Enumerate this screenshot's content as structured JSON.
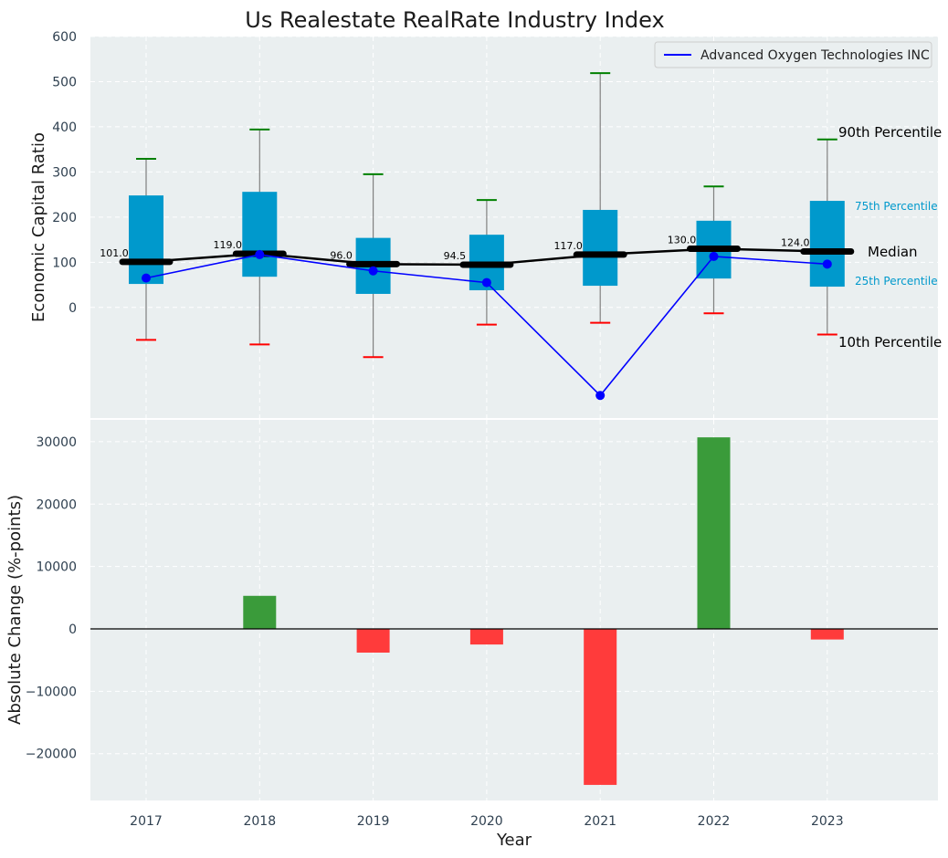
{
  "chart_data": [
    {
      "type": "box",
      "title": "Us Realestate RealRate Industry Index",
      "ylabel": "Economic Capital Ratio",
      "ylim": [
        -245,
        600
      ],
      "yticks": [
        0,
        100,
        200,
        300,
        400,
        500,
        600
      ],
      "categories": [
        "2017",
        "2018",
        "2019",
        "2020",
        "2021",
        "2022",
        "2023"
      ],
      "p10": [
        -72,
        -82,
        -110,
        -38,
        -34,
        -13,
        -60
      ],
      "p25": [
        52,
        68,
        30,
        38,
        48,
        64,
        46
      ],
      "median": [
        101,
        119,
        96,
        94.5,
        117,
        130,
        124
      ],
      "p75": [
        248,
        256,
        154,
        161,
        216,
        192,
        236
      ],
      "p90": [
        329,
        394,
        295,
        238,
        519,
        268,
        372
      ],
      "median_labels": [
        "101.0",
        "119.0",
        "96.0",
        "94.5",
        "117.0",
        "130.0",
        "124.0"
      ],
      "series": [
        {
          "name": "Advanced Oxygen Technologies INC",
          "color": "#0000ff",
          "values": [
            65,
            117,
            81,
            55,
            -195,
            113,
            96
          ]
        }
      ],
      "annotations": {
        "p90": "90th Percentile",
        "p75": "75th Percentile",
        "median": "Median",
        "p25": "25th Percentile",
        "p10": "10th Percentile"
      },
      "legend": "top-right",
      "grid": true,
      "colors": {
        "box": "#0099cc",
        "median": "#000000",
        "p90_cap": "#008000",
        "p10_cap": "#ff0000",
        "whisker": "#808080",
        "panel_bg": "#eaeff0"
      }
    },
    {
      "type": "bar",
      "xlabel": "Year",
      "ylabel": "Absolute Change (%-points)",
      "ylim": [
        -27500,
        33500
      ],
      "yticks": [
        -20000,
        -10000,
        0,
        10000,
        20000,
        30000
      ],
      "ytick_labels": [
        "−20000",
        "−10000",
        "0",
        "10000",
        "20000",
        "30000"
      ],
      "categories": [
        "2017",
        "2018",
        "2019",
        "2020",
        "2021",
        "2022",
        "2023"
      ],
      "values": [
        0,
        5300,
        -3800,
        -2500,
        -25000,
        30700,
        -1700
      ],
      "grid": true,
      "colors": {
        "positive": "#3a9b3a",
        "negative": "#ff3b3b",
        "panel_bg": "#eaeff0"
      }
    }
  ]
}
